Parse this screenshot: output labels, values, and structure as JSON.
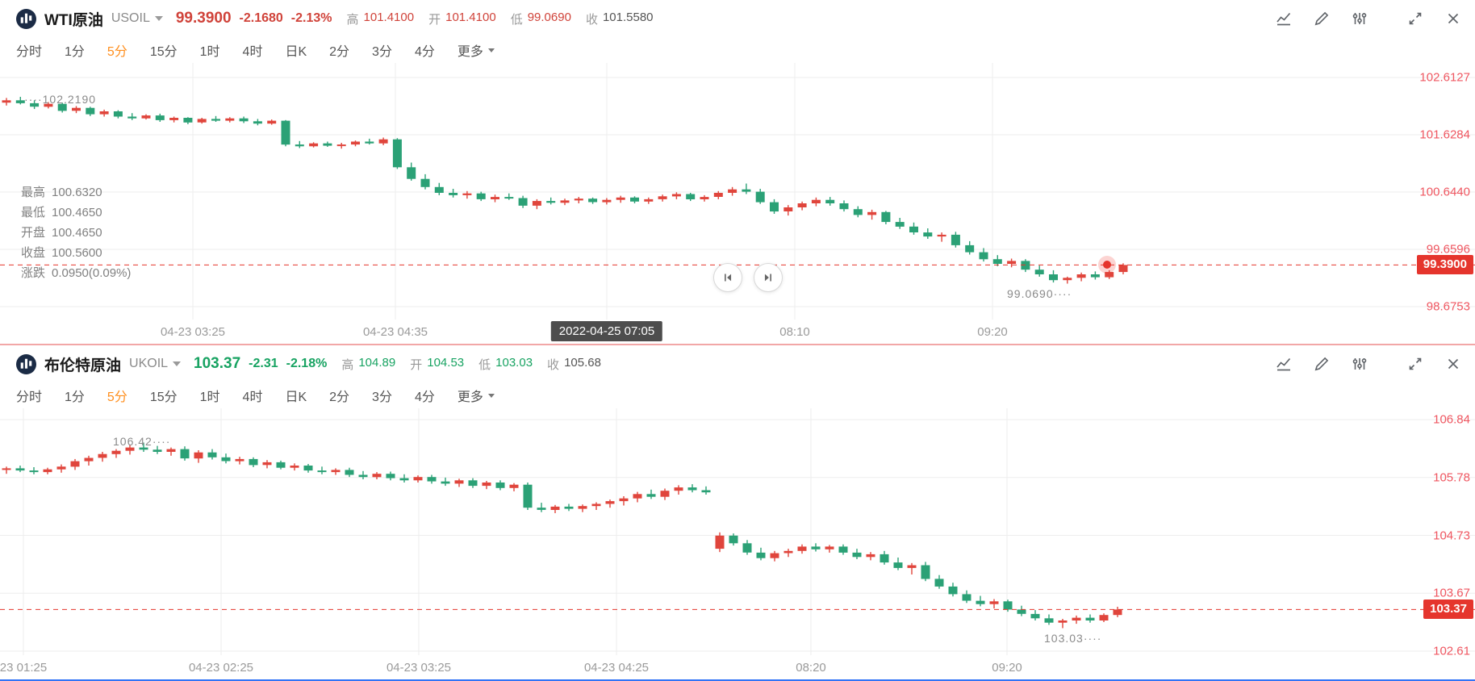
{
  "colors": {
    "candle_up": "#e0453c",
    "candle_down": "#2ba176",
    "quote_red": "#d0433a",
    "quote_green": "#18a362",
    "axis_label": "#ef5660",
    "badge_bg": "#e5352d",
    "tab_active": "#ff8e1c",
    "grid": "#ededed",
    "tooltip_bg": "#4d4d4d",
    "separator_red": "#f2a7a7",
    "separator_blue": "#3274f6",
    "logo_bg": "#1b2b45",
    "icon_gray": "#5f6368",
    "title_color": "#1a1a1a"
  },
  "toolbar": {
    "icons": [
      "chart-style",
      "draw-tools",
      "indicators",
      "fullscreen",
      "close"
    ]
  },
  "nav_controls": {
    "icons": [
      "skip-to-start",
      "skip-to-end"
    ]
  },
  "panels": [
    {
      "header": {
        "title": "WTI原油",
        "symbol": "USOIL",
        "price": "99.3900",
        "change": "-2.1680",
        "change_pct": "-2.13%",
        "tone": "red",
        "stats": [
          {
            "label": "高",
            "value": "101.4100",
            "colored": true
          },
          {
            "label": "开",
            "value": "101.4100",
            "colored": true
          },
          {
            "label": "低",
            "value": "99.0690",
            "colored": true
          },
          {
            "label": "收",
            "value": "101.5580",
            "colored": false
          }
        ]
      },
      "timeframes": {
        "items": [
          "分时",
          "1分",
          "5分",
          "15分",
          "1时",
          "4时",
          "日K",
          "2分",
          "3分",
          "4分"
        ],
        "active": "5分",
        "more": "更多"
      }
    },
    {
      "header": {
        "title": "布伦特原油",
        "symbol": "UKOIL",
        "price": "103.37",
        "change": "-2.31",
        "change_pct": "-2.18%",
        "tone": "green",
        "stats": [
          {
            "label": "高",
            "value": "104.89",
            "colored": true
          },
          {
            "label": "开",
            "value": "104.53",
            "colored": true
          },
          {
            "label": "低",
            "value": "103.03",
            "colored": true
          },
          {
            "label": "收",
            "value": "105.68",
            "colored": false
          }
        ]
      },
      "timeframes": {
        "items": [
          "分时",
          "1分",
          "5分",
          "15分",
          "1时",
          "4时",
          "日K",
          "2分",
          "3分",
          "4分"
        ],
        "active": "5分",
        "more": "更多"
      }
    }
  ],
  "chart_data": [
    {
      "type": "candlestick",
      "symbol": "USOIL",
      "interval": "5分",
      "y_axis": {
        "max": 102.6127,
        "min": 98.6753
      },
      "y_ticks": [
        "102.6127",
        "101.6284",
        "100.6440",
        "99.6596",
        "98.6753"
      ],
      "x_ticks": [
        {
          "text": "04-23 03:25"
        },
        {
          "text": "04-23 04:35"
        },
        {
          "text": "2022-04-25 07:05",
          "highlighted": true
        },
        {
          "text": "08:10"
        },
        {
          "text": "09:20"
        }
      ],
      "current_price": 99.39,
      "prev_close": 101.558,
      "price_label": "99.3900",
      "high_label": "102.2190",
      "low_label": "99.0690",
      "ohlc_readout": [
        [
          "最高",
          "100.6320"
        ],
        [
          "最低",
          "100.4650"
        ],
        [
          "开盘",
          "100.4650"
        ],
        [
          "收盘",
          "100.5600"
        ],
        [
          "涨跌",
          "0.0950(0.09%)"
        ]
      ],
      "candles": [
        [
          102.18,
          102.26,
          102.13,
          102.22
        ],
        [
          102.22,
          102.28,
          102.15,
          102.17
        ],
        [
          102.17,
          102.22,
          102.07,
          102.11
        ],
        [
          102.11,
          102.19,
          102.08,
          102.16
        ],
        [
          102.16,
          102.18,
          102.01,
          102.04
        ],
        [
          102.04,
          102.12,
          102.0,
          102.09
        ],
        [
          102.09,
          102.11,
          101.95,
          101.98
        ],
        [
          101.98,
          102.06,
          101.94,
          102.03
        ],
        [
          102.03,
          102.05,
          101.91,
          101.94
        ],
        [
          101.94,
          102.0,
          101.88,
          101.91
        ],
        [
          101.91,
          101.98,
          101.89,
          101.96
        ],
        [
          101.96,
          101.99,
          101.85,
          101.88
        ],
        [
          101.88,
          101.94,
          101.84,
          101.92
        ],
        [
          101.92,
          101.93,
          101.81,
          101.84
        ],
        [
          101.84,
          101.92,
          101.82,
          101.9
        ],
        [
          101.9,
          101.95,
          101.85,
          101.87
        ],
        [
          101.87,
          101.93,
          101.84,
          101.91
        ],
        [
          101.91,
          101.94,
          101.83,
          101.86
        ],
        [
          101.86,
          101.9,
          101.79,
          101.82
        ],
        [
          101.82,
          101.89,
          101.8,
          101.87
        ],
        [
          101.87,
          101.88,
          101.43,
          101.46
        ],
        [
          101.46,
          101.52,
          101.4,
          101.43
        ],
        [
          101.43,
          101.5,
          101.41,
          101.48
        ],
        [
          101.48,
          101.51,
          101.42,
          101.44
        ],
        [
          101.44,
          101.49,
          101.39,
          101.46
        ],
        [
          101.46,
          101.53,
          101.43,
          101.51
        ],
        [
          101.51,
          101.56,
          101.46,
          101.48
        ],
        [
          101.48,
          101.58,
          101.45,
          101.55
        ],
        [
          101.55,
          101.57,
          101.04,
          101.07
        ],
        [
          101.07,
          101.15,
          100.84,
          100.87
        ],
        [
          100.87,
          100.95,
          100.69,
          100.73
        ],
        [
          100.73,
          100.8,
          100.59,
          100.63
        ],
        [
          100.63,
          100.7,
          100.55,
          100.59
        ],
        [
          100.59,
          100.66,
          100.53,
          100.62
        ],
        [
          100.62,
          100.65,
          100.49,
          100.52
        ],
        [
          100.52,
          100.6,
          100.47,
          100.56
        ],
        [
          100.56,
          100.62,
          100.51,
          100.54
        ],
        [
          100.54,
          100.58,
          100.37,
          100.41
        ],
        [
          100.41,
          100.52,
          100.35,
          100.49
        ],
        [
          100.49,
          100.55,
          100.43,
          100.46
        ],
        [
          100.46,
          100.53,
          100.42,
          100.5
        ],
        [
          100.5,
          100.56,
          100.45,
          100.53
        ],
        [
          100.53,
          100.55,
          100.44,
          100.47
        ],
        [
          100.47,
          100.54,
          100.43,
          100.51
        ],
        [
          100.51,
          100.58,
          100.46,
          100.55
        ],
        [
          100.55,
          100.57,
          100.45,
          100.48
        ],
        [
          100.48,
          100.55,
          100.44,
          100.52
        ],
        [
          100.52,
          100.6,
          100.48,
          100.57
        ],
        [
          100.57,
          100.64,
          100.52,
          100.61
        ],
        [
          100.61,
          100.63,
          100.49,
          100.52
        ],
        [
          100.52,
          100.59,
          100.48,
          100.56
        ],
        [
          100.56,
          100.66,
          100.52,
          100.63
        ],
        [
          100.63,
          100.73,
          100.58,
          100.69
        ],
        [
          100.69,
          100.79,
          100.61,
          100.65
        ],
        [
          100.65,
          100.7,
          100.44,
          100.47
        ],
        [
          100.47,
          100.52,
          100.27,
          100.31
        ],
        [
          100.31,
          100.42,
          100.24,
          100.38
        ],
        [
          100.38,
          100.48,
          100.33,
          100.45
        ],
        [
          100.45,
          100.55,
          100.4,
          100.51
        ],
        [
          100.51,
          100.56,
          100.41,
          100.45
        ],
        [
          100.45,
          100.5,
          100.31,
          100.35
        ],
        [
          100.35,
          100.4,
          100.21,
          100.25
        ],
        [
          100.25,
          100.34,
          100.17,
          100.3
        ],
        [
          100.3,
          100.32,
          100.09,
          100.13
        ],
        [
          100.13,
          100.2,
          100.01,
          100.05
        ],
        [
          100.05,
          100.12,
          99.91,
          99.95
        ],
        [
          99.95,
          100.02,
          99.84,
          99.88
        ],
        [
          99.88,
          99.95,
          99.79,
          99.91
        ],
        [
          99.91,
          99.96,
          99.69,
          99.73
        ],
        [
          99.73,
          99.8,
          99.57,
          99.61
        ],
        [
          99.61,
          99.68,
          99.45,
          99.49
        ],
        [
          99.49,
          99.56,
          99.37,
          99.41
        ],
        [
          99.41,
          99.5,
          99.35,
          99.46
        ],
        [
          99.46,
          99.49,
          99.27,
          99.31
        ],
        [
          99.31,
          99.38,
          99.19,
          99.23
        ],
        [
          99.23,
          99.3,
          99.09,
          99.13
        ],
        [
          99.13,
          99.19,
          99.07,
          99.17
        ],
        [
          99.17,
          99.26,
          99.11,
          99.23
        ],
        [
          99.23,
          99.28,
          99.14,
          99.18
        ],
        [
          99.18,
          99.3,
          99.15,
          99.27
        ],
        [
          99.27,
          99.42,
          99.23,
          99.39
        ]
      ]
    },
    {
      "type": "candlestick",
      "symbol": "UKOIL",
      "interval": "5分",
      "y_axis": {
        "max": 106.84,
        "min": 102.61
      },
      "y_ticks": [
        "106.84",
        "105.78",
        "104.73",
        "103.67",
        "102.61"
      ],
      "x_ticks": [
        {
          "text": "23 01:25"
        },
        {
          "text": "04-23 02:25"
        },
        {
          "text": "04-23 03:25"
        },
        {
          "text": "04-23 04:25"
        },
        {
          "text": "08:20"
        },
        {
          "text": "09:20"
        }
      ],
      "current_price": 103.37,
      "prev_close": 105.68,
      "price_label": "103.37",
      "high_label": "106.42",
      "low_label": "103.03",
      "candles": [
        [
          105.92,
          105.98,
          105.85,
          105.95
        ],
        [
          105.95,
          106.0,
          105.88,
          105.91
        ],
        [
          105.91,
          105.97,
          105.84,
          105.88
        ],
        [
          105.88,
          105.96,
          105.84,
          105.93
        ],
        [
          105.93,
          106.02,
          105.87,
          105.98
        ],
        [
          105.98,
          106.12,
          105.92,
          106.08
        ],
        [
          106.08,
          106.18,
          106.0,
          106.14
        ],
        [
          106.14,
          106.25,
          106.07,
          106.21
        ],
        [
          106.21,
          106.3,
          106.14,
          106.27
        ],
        [
          106.27,
          106.38,
          106.2,
          106.33
        ],
        [
          106.33,
          106.42,
          106.25,
          106.29
        ],
        [
          106.29,
          106.36,
          106.21,
          106.25
        ],
        [
          106.25,
          106.33,
          106.18,
          106.3
        ],
        [
          106.3,
          106.35,
          106.09,
          106.13
        ],
        [
          106.13,
          106.28,
          106.05,
          106.24
        ],
        [
          106.24,
          106.3,
          106.11,
          106.15
        ],
        [
          106.15,
          106.22,
          106.04,
          106.08
        ],
        [
          106.08,
          106.16,
          106.02,
          106.12
        ],
        [
          106.12,
          106.15,
          105.97,
          106.01
        ],
        [
          106.01,
          106.1,
          105.95,
          106.06
        ],
        [
          106.06,
          106.09,
          105.93,
          105.96
        ],
        [
          105.96,
          106.04,
          105.91,
          106.0
        ],
        [
          106.0,
          106.03,
          105.87,
          105.91
        ],
        [
          105.91,
          105.98,
          105.84,
          105.88
        ],
        [
          105.88,
          105.95,
          105.83,
          105.92
        ],
        [
          105.92,
          105.96,
          105.79,
          105.83
        ],
        [
          105.83,
          105.9,
          105.75,
          105.79
        ],
        [
          105.79,
          105.88,
          105.75,
          105.85
        ],
        [
          105.85,
          105.89,
          105.73,
          105.77
        ],
        [
          105.77,
          105.84,
          105.69,
          105.73
        ],
        [
          105.73,
          105.82,
          105.69,
          105.79
        ],
        [
          105.79,
          105.83,
          105.67,
          105.71
        ],
        [
          105.71,
          105.78,
          105.63,
          105.67
        ],
        [
          105.67,
          105.76,
          105.61,
          105.73
        ],
        [
          105.73,
          105.77,
          105.59,
          105.63
        ],
        [
          105.63,
          105.72,
          105.57,
          105.69
        ],
        [
          105.69,
          105.73,
          105.55,
          105.59
        ],
        [
          105.59,
          105.68,
          105.53,
          105.65
        ],
        [
          105.65,
          105.69,
          105.19,
          105.23
        ],
        [
          105.23,
          105.32,
          105.15,
          105.19
        ],
        [
          105.19,
          105.28,
          105.13,
          105.25
        ],
        [
          105.25,
          105.3,
          105.17,
          105.21
        ],
        [
          105.21,
          105.29,
          105.15,
          105.26
        ],
        [
          105.26,
          105.33,
          105.19,
          105.3
        ],
        [
          105.3,
          105.38,
          105.23,
          105.35
        ],
        [
          105.35,
          105.44,
          105.27,
          105.4
        ],
        [
          105.4,
          105.52,
          105.33,
          105.48
        ],
        [
          105.48,
          105.56,
          105.39,
          105.43
        ],
        [
          105.43,
          105.58,
          105.37,
          105.54
        ],
        [
          105.54,
          105.64,
          105.47,
          105.6
        ],
        [
          105.6,
          105.66,
          105.51,
          105.55
        ],
        [
          105.55,
          105.62,
          105.47,
          105.51
        ],
        [
          104.48,
          104.78,
          104.42,
          104.72
        ],
        [
          104.72,
          104.76,
          104.54,
          104.58
        ],
        [
          104.58,
          104.64,
          104.37,
          104.41
        ],
        [
          104.41,
          104.5,
          104.27,
          104.31
        ],
        [
          104.31,
          104.44,
          104.25,
          104.4
        ],
        [
          104.4,
          104.48,
          104.33,
          104.44
        ],
        [
          104.44,
          104.56,
          104.39,
          104.52
        ],
        [
          104.52,
          104.58,
          104.43,
          104.47
        ],
        [
          104.47,
          104.55,
          104.41,
          104.52
        ],
        [
          104.52,
          104.56,
          104.37,
          104.41
        ],
        [
          104.41,
          104.48,
          104.29,
          104.33
        ],
        [
          104.33,
          104.42,
          104.27,
          104.38
        ],
        [
          104.38,
          104.44,
          104.19,
          104.23
        ],
        [
          104.23,
          104.32,
          104.09,
          104.13
        ],
        [
          104.13,
          104.22,
          104.01,
          104.18
        ],
        [
          104.18,
          104.24,
          103.89,
          103.93
        ],
        [
          103.93,
          104.0,
          103.75,
          103.79
        ],
        [
          103.79,
          103.86,
          103.61,
          103.65
        ],
        [
          103.65,
          103.72,
          103.49,
          103.53
        ],
        [
          103.53,
          103.62,
          103.43,
          103.47
        ],
        [
          103.47,
          103.56,
          103.39,
          103.52
        ],
        [
          103.52,
          103.55,
          103.33,
          103.37
        ],
        [
          103.37,
          103.44,
          103.25,
          103.29
        ],
        [
          103.29,
          103.36,
          103.17,
          103.21
        ],
        [
          103.21,
          103.28,
          103.09,
          103.13
        ],
        [
          103.13,
          103.2,
          103.03,
          103.17
        ],
        [
          103.17,
          103.26,
          103.11,
          103.22
        ],
        [
          103.22,
          103.28,
          103.13,
          103.17
        ],
        [
          103.17,
          103.3,
          103.14,
          103.27
        ],
        [
          103.27,
          103.42,
          103.23,
          103.37
        ]
      ]
    }
  ]
}
